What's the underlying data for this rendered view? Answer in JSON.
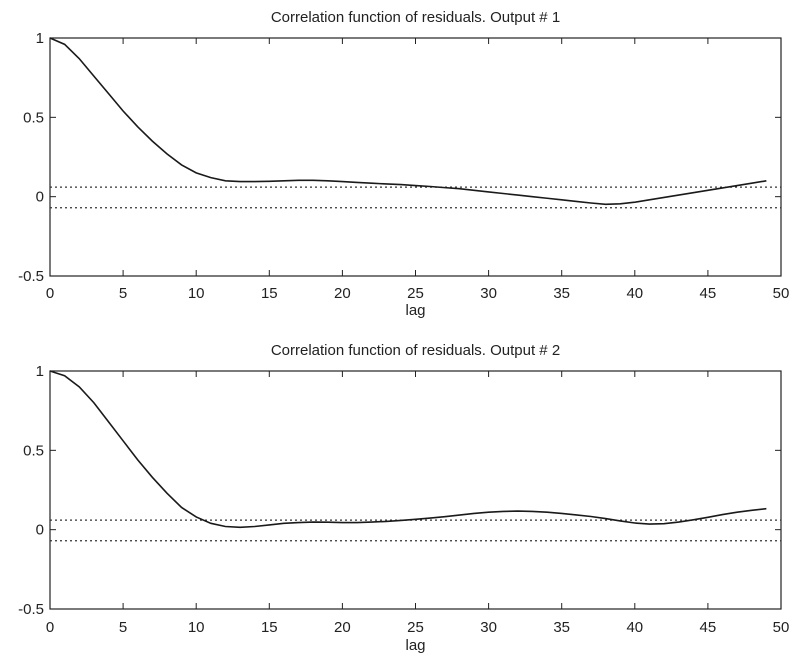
{
  "chart_data": [
    {
      "type": "line",
      "title": "Correlation function of residuals. Output # 1",
      "xlabel": "lag",
      "ylabel": "",
      "xlim": [
        0,
        50
      ],
      "ylim": [
        -0.5,
        1
      ],
      "xticks": [
        0,
        5,
        10,
        15,
        20,
        25,
        30,
        35,
        40,
        45,
        50
      ],
      "yticks": [
        -0.5,
        0,
        0.5,
        1
      ],
      "ytick_labels": [
        "-0.5",
        "0",
        "0.5",
        "1"
      ],
      "grid": false,
      "confidence_bounds": [
        0.06,
        -0.07
      ],
      "series": [
        {
          "x": [
            0,
            1,
            2,
            3,
            4,
            5,
            6,
            7,
            8,
            9,
            10,
            11,
            12,
            13,
            14,
            15,
            16,
            17,
            18,
            19,
            20,
            21,
            22,
            23,
            24,
            25,
            26,
            27,
            28,
            29,
            30,
            31,
            32,
            33,
            34,
            35,
            36,
            37,
            38,
            39,
            40,
            41,
            42,
            43,
            44,
            45,
            46,
            47,
            48,
            49
          ],
          "values": [
            1.0,
            0.96,
            0.87,
            0.76,
            0.65,
            0.54,
            0.44,
            0.35,
            0.27,
            0.2,
            0.15,
            0.12,
            0.1,
            0.095,
            0.095,
            0.097,
            0.1,
            0.103,
            0.103,
            0.1,
            0.095,
            0.09,
            0.085,
            0.08,
            0.076,
            0.07,
            0.064,
            0.057,
            0.05,
            0.04,
            0.03,
            0.02,
            0.01,
            0.0,
            -0.01,
            -0.02,
            -0.03,
            -0.04,
            -0.048,
            -0.045,
            -0.035,
            -0.02,
            -0.005,
            0.01,
            0.025,
            0.04,
            0.055,
            0.07,
            0.085,
            0.1
          ]
        }
      ]
    },
    {
      "type": "line",
      "title": "Correlation function of residuals. Output # 2",
      "xlabel": "lag",
      "ylabel": "",
      "xlim": [
        0,
        50
      ],
      "ylim": [
        -0.5,
        1
      ],
      "xticks": [
        0,
        5,
        10,
        15,
        20,
        25,
        30,
        35,
        40,
        45,
        50
      ],
      "yticks": [
        -0.5,
        0,
        0.5,
        1
      ],
      "ytick_labels": [
        "-0.5",
        "0",
        "0.5",
        "1"
      ],
      "grid": false,
      "confidence_bounds": [
        0.06,
        -0.07
      ],
      "series": [
        {
          "x": [
            0,
            1,
            2,
            3,
            4,
            5,
            6,
            7,
            8,
            9,
            10,
            11,
            12,
            13,
            14,
            15,
            16,
            17,
            18,
            19,
            20,
            21,
            22,
            23,
            24,
            25,
            26,
            27,
            28,
            29,
            30,
            31,
            32,
            33,
            34,
            35,
            36,
            37,
            38,
            39,
            40,
            41,
            42,
            43,
            44,
            45,
            46,
            47,
            48,
            49
          ],
          "values": [
            1.0,
            0.97,
            0.9,
            0.8,
            0.68,
            0.56,
            0.44,
            0.33,
            0.23,
            0.14,
            0.08,
            0.04,
            0.02,
            0.015,
            0.02,
            0.03,
            0.04,
            0.045,
            0.048,
            0.047,
            0.045,
            0.045,
            0.048,
            0.052,
            0.058,
            0.065,
            0.073,
            0.082,
            0.092,
            0.102,
            0.11,
            0.115,
            0.117,
            0.115,
            0.11,
            0.102,
            0.093,
            0.083,
            0.07,
            0.055,
            0.042,
            0.035,
            0.038,
            0.048,
            0.062,
            0.078,
            0.095,
            0.11,
            0.122,
            0.132
          ]
        }
      ]
    }
  ]
}
